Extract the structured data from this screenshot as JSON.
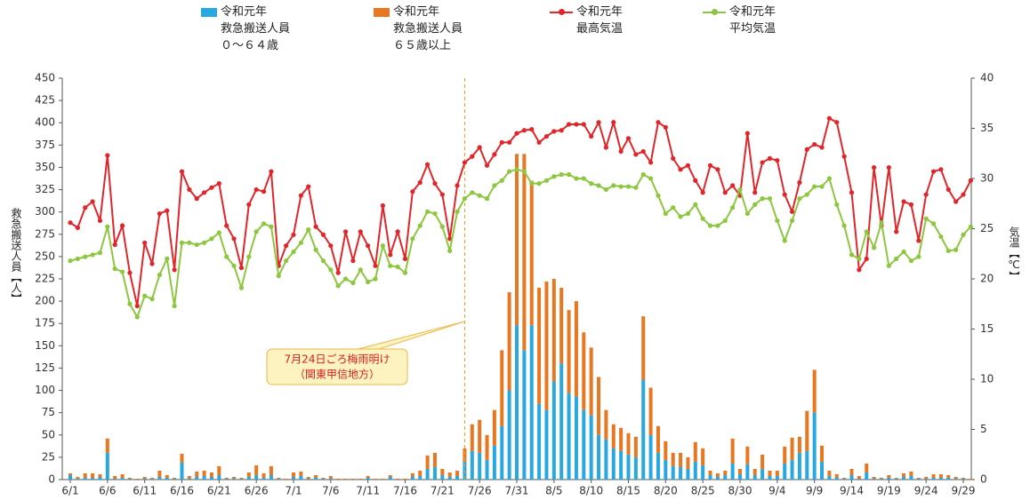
{
  "chart_data": {
    "type": "bar_line",
    "ylabel": "救急搬送人員【人】",
    "y2label": "気温【℃】",
    "annotations": [
      "7月24日ごろ梅雨明け",
      "（関東甲信地方）"
    ],
    "categories": [
      "6/1",
      null,
      null,
      null,
      null,
      "6/6",
      null,
      null,
      null,
      null,
      "6/11",
      null,
      null,
      null,
      null,
      "6/16",
      null,
      null,
      null,
      null,
      "6/21",
      null,
      null,
      null,
      null,
      "6/26",
      null,
      null,
      null,
      null,
      "7/1",
      null,
      null,
      null,
      null,
      "7/6",
      null,
      null,
      null,
      null,
      "7/11",
      null,
      null,
      null,
      null,
      "7/16",
      null,
      null,
      null,
      null,
      "7/21",
      null,
      null,
      null,
      null,
      "7/26",
      null,
      null,
      null,
      null,
      "7/31",
      null,
      null,
      null,
      null,
      "8/5",
      null,
      null,
      null,
      null,
      "8/10",
      null,
      null,
      null,
      null,
      "8/15",
      null,
      null,
      null,
      null,
      "8/20",
      null,
      null,
      null,
      null,
      "8/25",
      null,
      null,
      null,
      null,
      "8/30",
      null,
      null,
      null,
      null,
      "9/4",
      null,
      null,
      null,
      null,
      "9/9",
      null,
      null,
      null,
      null,
      "9/14",
      null,
      null,
      null,
      null,
      "9/19",
      null,
      null,
      null,
      null,
      "9/24",
      null,
      null,
      null,
      null,
      "9/29",
      null
    ],
    "ylim": [
      0,
      450
    ],
    "yticks": [
      0,
      25,
      50,
      75,
      100,
      125,
      150,
      175,
      200,
      225,
      250,
      275,
      300,
      325,
      350,
      375,
      400,
      425,
      450
    ],
    "y2lim": [
      0,
      40
    ],
    "y2ticks": [
      0,
      5,
      10,
      15,
      20,
      25,
      30,
      35,
      40
    ],
    "series": [
      {
        "name": "令和元年\n救急搬送人員\n０～６４歳",
        "kind": "bar",
        "color": "#29a8e0",
        "values": [
          5,
          1,
          2,
          2,
          3,
          30,
          1,
          2,
          1,
          0,
          1,
          1,
          3,
          2,
          1,
          19,
          1,
          3,
          4,
          3,
          5,
          1,
          1,
          1,
          3,
          5,
          2,
          5,
          1,
          0,
          3,
          4,
          1,
          2,
          1,
          1,
          0,
          0,
          0,
          0,
          2,
          0,
          0,
          3,
          0,
          0,
          3,
          4,
          12,
          14,
          5,
          3,
          4,
          20,
          32,
          30,
          22,
          38,
          60,
          100,
          173,
          145,
          173,
          85,
          78,
          110,
          130,
          97,
          93,
          78,
          72,
          50,
          45,
          35,
          32,
          28,
          25,
          112,
          50,
          30,
          22,
          15,
          14,
          12,
          20,
          16,
          5,
          3,
          5,
          18,
          6,
          17,
          5,
          12,
          4,
          4,
          18,
          22,
          30,
          32,
          75,
          20,
          4,
          2,
          1,
          5,
          1,
          8,
          1,
          1,
          2,
          1,
          3,
          4,
          1,
          1,
          2,
          2,
          2,
          1,
          1,
          0
        ]
      },
      {
        "name": "令和元年\n救急搬送人員\n６５歳以上",
        "kind": "bar",
        "color": "#e87722",
        "values": [
          2,
          2,
          5,
          5,
          3,
          16,
          3,
          4,
          1,
          1,
          2,
          1,
          7,
          3,
          1,
          10,
          3,
          6,
          6,
          5,
          10,
          1,
          2,
          1,
          5,
          11,
          5,
          10,
          1,
          1,
          5,
          5,
          2,
          3,
          1,
          3,
          1,
          1,
          1,
          1,
          2,
          1,
          1,
          2,
          1,
          1,
          4,
          6,
          15,
          16,
          7,
          5,
          6,
          15,
          30,
          37,
          28,
          40,
          85,
          110,
          192,
          220,
          162,
          130,
          144,
          115,
          85,
          93,
          107,
          87,
          76,
          65,
          33,
          27,
          26,
          24,
          23,
          71,
          53,
          30,
          21,
          15,
          16,
          13,
          22,
          19,
          5,
          4,
          5,
          28,
          6,
          20,
          7,
          16,
          6,
          6,
          19,
          25,
          18,
          45,
          48,
          18,
          6,
          4,
          1,
          7,
          3,
          10,
          2,
          1,
          3,
          1,
          4,
          5,
          1,
          2,
          4,
          4,
          3,
          2,
          1,
          1
        ]
      },
      {
        "name": "令和元年\n最高気温",
        "kind": "line",
        "axis": "y2",
        "color": "#e0262a",
        "values": [
          25.6,
          25.1,
          27.1,
          27.7,
          25.8,
          32.3,
          23.4,
          25.3,
          20.6,
          17.3,
          23.6,
          21.5,
          26.5,
          26.8,
          20.9,
          30.7,
          28.9,
          28.0,
          28.6,
          29.1,
          29.5,
          25.3,
          24.0,
          21.1,
          27.4,
          28.9,
          28.7,
          30.7,
          21.3,
          23.3,
          24.4,
          28.3,
          29.2,
          25.2,
          24.4,
          23.3,
          20.6,
          24.7,
          21.8,
          24.7,
          23.3,
          21.3,
          27.3,
          22.4,
          24.7,
          22.0,
          28.7,
          29.6,
          31.4,
          29.5,
          28.4,
          24.0,
          29.3,
          31.6,
          32.2,
          33.1,
          31.3,
          32.4,
          33.6,
          33.6,
          34.5,
          34.8,
          34.9,
          33.6,
          34.2,
          34.7,
          34.8,
          35.4,
          35.4,
          35.4,
          34.2,
          35.6,
          33.1,
          35.6,
          32.7,
          34.0,
          32.4,
          32.7,
          31.6,
          35.6,
          35.1,
          32.0,
          30.9,
          31.3,
          29.8,
          28.6,
          31.3,
          30.9,
          28.6,
          29.3,
          28.3,
          34.5,
          28.6,
          31.6,
          32.0,
          31.8,
          28.4,
          26.7,
          29.6,
          32.9,
          33.4,
          33.1,
          36.0,
          35.6,
          32.2,
          28.6,
          20.9,
          22.0,
          31.1,
          25.3,
          31.1,
          24.7,
          27.7,
          27.4,
          23.8,
          28.4,
          30.7,
          30.9,
          28.9,
          27.7,
          28.4,
          29.8
        ]
      },
      {
        "name": "令和元年\n平均気温",
        "kind": "line",
        "axis": "y2",
        "color": "#8dc63f",
        "values": [
          21.8,
          22.0,
          22.2,
          22.4,
          22.6,
          25.2,
          21.0,
          20.7,
          17.5,
          16.2,
          18.3,
          18.0,
          20.4,
          22.0,
          17.3,
          23.6,
          23.6,
          23.4,
          23.6,
          24.0,
          24.6,
          22.2,
          21.3,
          19.1,
          22.2,
          24.7,
          25.5,
          25.2,
          20.3,
          21.8,
          22.7,
          23.6,
          24.9,
          22.9,
          21.8,
          20.9,
          19.3,
          20.0,
          19.6,
          20.9,
          19.7,
          20.0,
          23.3,
          21.3,
          21.2,
          20.6,
          24.0,
          25.3,
          26.7,
          26.5,
          25.2,
          22.8,
          26.7,
          28.0,
          28.6,
          28.3,
          28.0,
          29.3,
          29.8,
          30.7,
          30.9,
          30.7,
          29.5,
          29.5,
          29.8,
          30.2,
          30.4,
          30.4,
          30.0,
          30.0,
          29.5,
          29.3,
          28.9,
          29.3,
          29.2,
          29.2,
          29.1,
          30.4,
          30.0,
          28.3,
          26.5,
          27.1,
          26.2,
          26.5,
          27.4,
          26.0,
          25.3,
          25.3,
          25.8,
          27.1,
          28.9,
          26.5,
          27.4,
          28.0,
          28.0,
          25.8,
          23.8,
          25.8,
          28.0,
          28.4,
          29.2,
          29.2,
          30.0,
          27.4,
          25.3,
          22.4,
          22.0,
          24.7,
          23.1,
          25.6,
          21.3,
          22.0,
          22.7,
          21.8,
          22.2,
          26.0,
          25.5,
          24.2,
          22.8,
          22.9,
          24.4,
          25.2
        ]
      }
    ]
  }
}
